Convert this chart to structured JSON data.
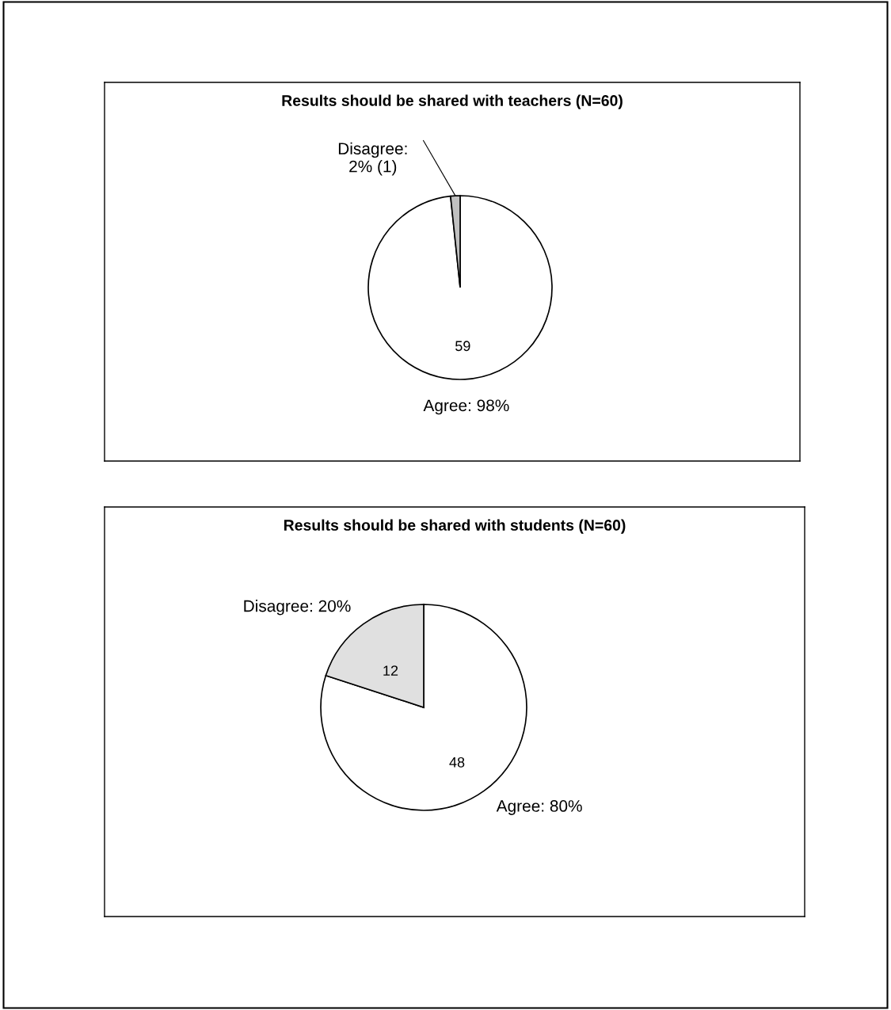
{
  "chart_data": [
    {
      "type": "pie",
      "title": "Results should be shared with teachers (N=60)",
      "categories": [
        "Agree: 98%",
        "Disagree:\n2% (1)"
      ],
      "values": [
        59,
        1
      ],
      "colors": [
        "#ffffff",
        "#c0c0c0"
      ],
      "value_labels": [
        "59",
        null
      ]
    },
    {
      "type": "pie",
      "title": "Results should be shared with students (N=60)",
      "categories": [
        "Agree: 80%",
        "Disagree: 20%"
      ],
      "values": [
        48,
        12
      ],
      "colors": [
        "#ffffff",
        "#e0e0e0"
      ],
      "value_labels": [
        "48",
        "12"
      ]
    }
  ]
}
